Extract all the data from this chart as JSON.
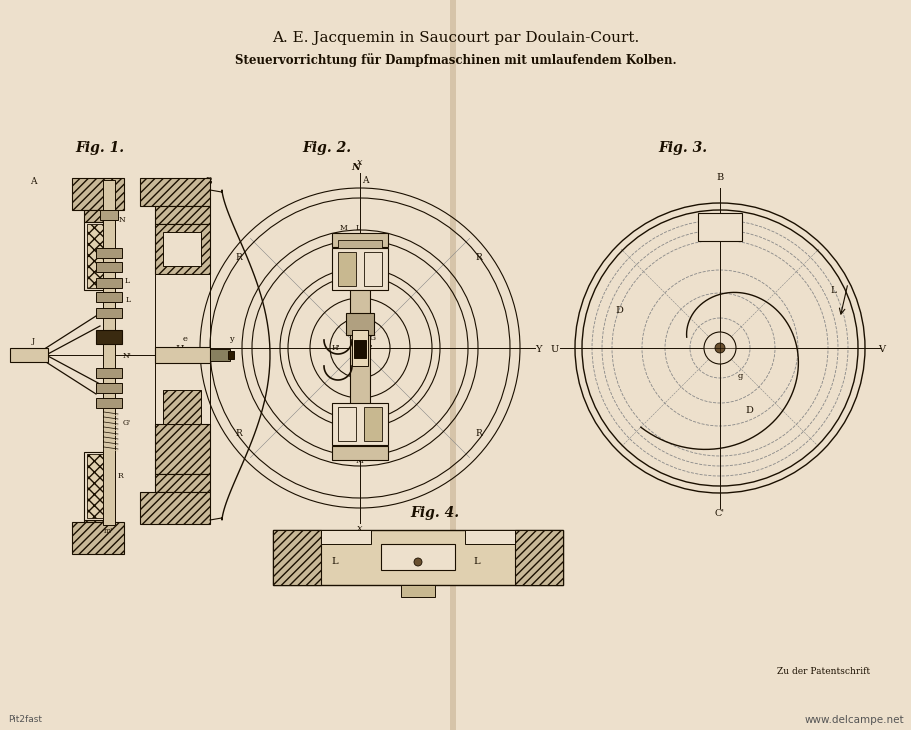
{
  "bg_color": "#f0e2cc",
  "page_color": "#ede0cc",
  "title1": "A. E. Jacquemin in Saucourt par Doulain-Court.",
  "title2": "Steuervorrichtung für Dampfmaschinen mit umlaufendem Kolben.",
  "fig1_label": "Fig. 1.",
  "fig2_label": "Fig. 2.",
  "fig3_label": "Fig. 3.",
  "fig4_label": "Fig. 4.",
  "bottom_left": "Pit2fast",
  "bottom_right": "www.delcampe.net",
  "patent_text": "Zu der Patentschrift",
  "line_color": "#1a0f00",
  "dashed_color": "#888888",
  "hatch_fill": "#c8b898",
  "paper_color": "#ede0cc",
  "fold_color": "#c0aa88"
}
